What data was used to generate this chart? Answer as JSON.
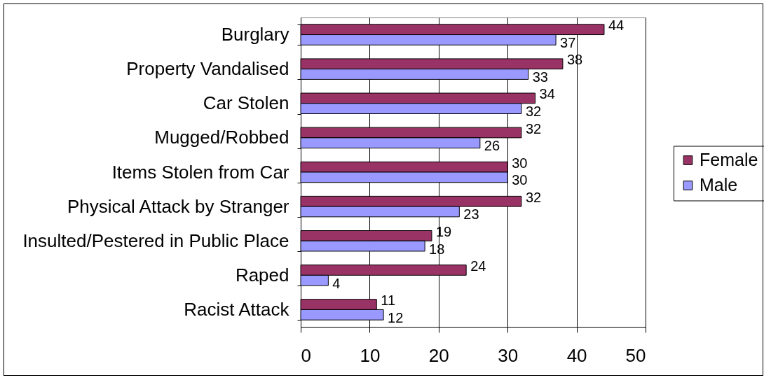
{
  "chart_data": {
    "type": "bar",
    "orientation": "horizontal",
    "categories": [
      "Burglary",
      "Property Vandalised",
      "Car Stolen",
      "Mugged/Robbed",
      "Items Stolen from Car",
      "Physical Attack by Stranger",
      "Insulted/Pestered in Public Place",
      "Raped",
      "Racist Attack"
    ],
    "series": [
      {
        "name": "Female",
        "color": "#993366",
        "values": [
          44,
          38,
          34,
          32,
          30,
          32,
          19,
          24,
          11
        ]
      },
      {
        "name": "Male",
        "color": "#9999ff",
        "values": [
          37,
          33,
          32,
          26,
          30,
          23,
          18,
          4,
          12
        ]
      }
    ],
    "xlim": [
      0,
      50
    ],
    "xticks": [
      0,
      10,
      20,
      30,
      40,
      50
    ],
    "grid": "x",
    "legend": "right",
    "data_labels": true
  }
}
